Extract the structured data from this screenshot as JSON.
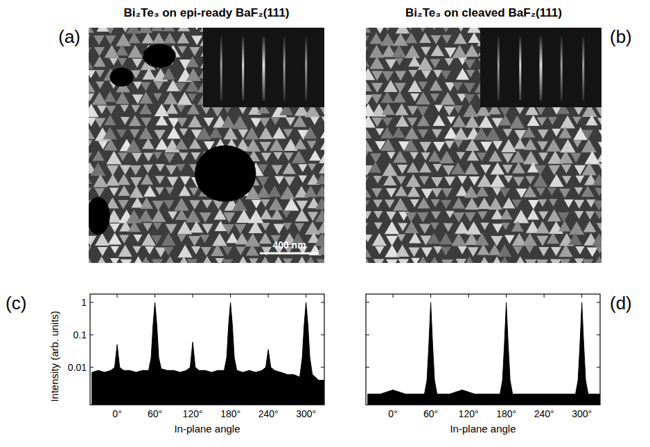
{
  "images": [
    {
      "panel_label": "(a)",
      "title": "Bi₂Te₃ on epi-ready BaF₂(111)",
      "scale_bar": "400 nm"
    },
    {
      "panel_label": "(b)",
      "title": "Bi₂Te₃ on cleaved BaF₂(111)"
    }
  ],
  "chart_data": [
    {
      "type": "area",
      "panel_label": "(c)",
      "x_label": "In-plane angle",
      "y_label": "Intensity (arb. units)",
      "log": "y",
      "color": "#000000",
      "tick_labels": true,
      "xlim": [
        -43,
        329
      ],
      "ylim": [
        0.0007,
        1.8
      ],
      "xticks": [
        {
          "value": 0,
          "label": "0°"
        },
        {
          "value": 60,
          "label": "60°"
        },
        {
          "value": 120,
          "label": "120°"
        },
        {
          "value": 180,
          "label": "180°"
        },
        {
          "value": 240,
          "label": "240°"
        },
        {
          "value": 300,
          "label": "300°"
        }
      ],
      "yticks": [
        0.01,
        0.1,
        1
      ],
      "x": [
        -40,
        -30,
        -20,
        -10,
        -4,
        0,
        4,
        10,
        20,
        30,
        40,
        50,
        54,
        57,
        60,
        63,
        66,
        70,
        80,
        90,
        100,
        110,
        116,
        120,
        124,
        130,
        140,
        150,
        160,
        170,
        174,
        177,
        180,
        183,
        186,
        190,
        200,
        210,
        220,
        230,
        236,
        240,
        244,
        250,
        260,
        270,
        280,
        290,
        294,
        297,
        300,
        303,
        306,
        310,
        320,
        330
      ],
      "values": [
        0.007,
        0.008,
        0.007,
        0.008,
        0.01,
        0.05,
        0.01,
        0.008,
        0.008,
        0.007,
        0.008,
        0.008,
        0.02,
        0.2,
        1,
        0.2,
        0.02,
        0.009,
        0.008,
        0.008,
        0.007,
        0.008,
        0.01,
        0.06,
        0.01,
        0.008,
        0.008,
        0.007,
        0.008,
        0.008,
        0.02,
        0.2,
        1,
        0.2,
        0.02,
        0.008,
        0.007,
        0.008,
        0.007,
        0.008,
        0.01,
        0.035,
        0.01,
        0.008,
        0.007,
        0.006,
        0.006,
        0.005,
        0.02,
        0.2,
        1,
        0.2,
        0.02,
        0.006,
        0.004,
        0.004
      ]
    },
    {
      "type": "area",
      "panel_label": "(d)",
      "x_label": "In-plane angle",
      "log": "y",
      "color": "#000000",
      "tick_labels": "x",
      "xlim": [
        -43,
        329
      ],
      "ylim": [
        0.0007,
        1.8
      ],
      "xticks": [
        {
          "value": 0,
          "label": "0°"
        },
        {
          "value": 60,
          "label": "60°"
        },
        {
          "value": 120,
          "label": "120°"
        },
        {
          "value": 180,
          "label": "180°"
        },
        {
          "value": 240,
          "label": "240°"
        },
        {
          "value": 300,
          "label": "300°"
        }
      ],
      "yticks": [
        0.01,
        0.1,
        1
      ],
      "x": [
        -40,
        -20,
        0,
        20,
        40,
        50,
        54,
        57,
        60,
        63,
        66,
        70,
        90,
        110,
        130,
        150,
        170,
        174,
        177,
        180,
        183,
        186,
        190,
        210,
        230,
        250,
        270,
        290,
        294,
        297,
        300,
        303,
        306,
        310,
        330
      ],
      "values": [
        0.0015,
        0.0015,
        0.002,
        0.0015,
        0.0015,
        0.0015,
        0.004,
        0.05,
        1,
        0.05,
        0.004,
        0.0015,
        0.0015,
        0.002,
        0.0015,
        0.0015,
        0.0015,
        0.004,
        0.05,
        1,
        0.05,
        0.004,
        0.0015,
        0.0015,
        0.0015,
        0.0015,
        0.0015,
        0.0015,
        0.004,
        0.05,
        1,
        0.05,
        0.004,
        0.0015,
        0.0015
      ]
    }
  ]
}
